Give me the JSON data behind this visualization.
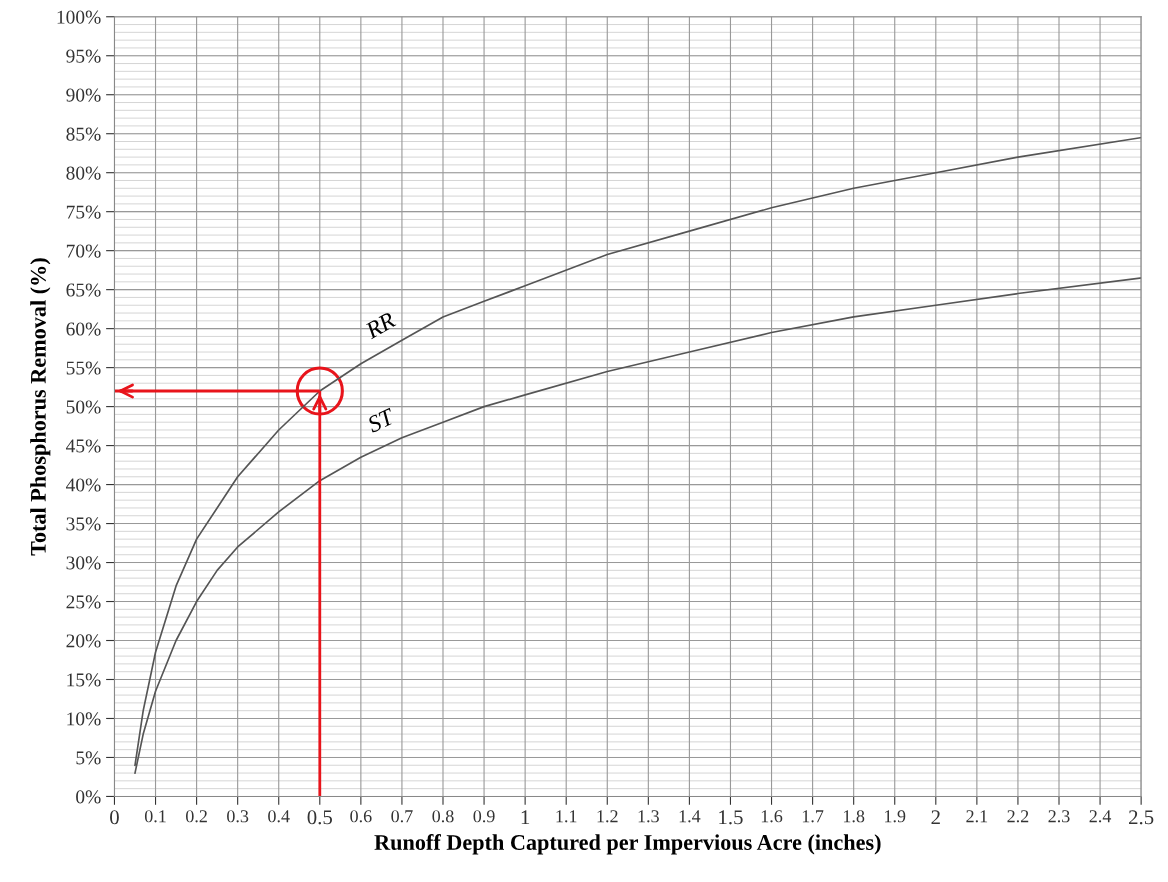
{
  "chart_data": {
    "type": "line",
    "xlabel": "Runoff Depth Captured per Impervious Acre (inches)",
    "ylabel": "Total Phosphorus Removal (%)",
    "x": [
      0.05,
      0.07,
      0.1,
      0.15,
      0.2,
      0.25,
      0.3,
      0.4,
      0.5,
      0.6,
      0.7,
      0.8,
      0.9,
      1,
      1.2,
      1.4,
      1.6,
      1.8,
      2,
      2.2,
      2.5
    ],
    "series": [
      {
        "name": "RR",
        "color": "#555555",
        "values": [
          4,
          11,
          18.5,
          27,
          33,
          37,
          41,
          47,
          52,
          55.5,
          58.5,
          61.5,
          63.5,
          65.5,
          69.5,
          72.5,
          75.5,
          78,
          80,
          82,
          84.5
        ]
      },
      {
        "name": "ST",
        "color": "#555555",
        "values": [
          3,
          8,
          13.5,
          20,
          25,
          29,
          32,
          36.5,
          40.5,
          43.5,
          46,
          48,
          50,
          51.5,
          54.5,
          57,
          59.5,
          61.5,
          63,
          64.5,
          66.5
        ]
      }
    ],
    "xlim": [
      0,
      2.5
    ],
    "xticks": [
      0,
      0.1,
      0.2,
      0.3,
      0.4,
      0.5,
      0.6,
      0.7,
      0.8,
      0.9,
      1,
      1.1,
      1.2,
      1.3,
      1.4,
      1.5,
      1.6,
      1.7,
      1.8,
      1.9,
      2,
      2.1,
      2.2,
      2.3,
      2.4,
      2.5
    ],
    "ylim": [
      0,
      100
    ],
    "yticks": [
      {
        "value": 0,
        "label": "0%"
      },
      {
        "value": 5,
        "label": "5%"
      },
      {
        "value": 10,
        "label": "10%"
      },
      {
        "value": 15,
        "label": "15%"
      },
      {
        "value": 20,
        "label": "20%"
      },
      {
        "value": 25,
        "label": "25%"
      },
      {
        "value": 30,
        "label": "30%"
      },
      {
        "value": 35,
        "label": "35%"
      },
      {
        "value": 40,
        "label": "40%"
      },
      {
        "value": 45,
        "label": "45%"
      },
      {
        "value": 50,
        "label": "50%"
      },
      {
        "value": 55,
        "label": "55%"
      },
      {
        "value": 60,
        "label": "60%"
      },
      {
        "value": 65,
        "label": "65%"
      },
      {
        "value": 70,
        "label": "70%"
      },
      {
        "value": 75,
        "label": "75%"
      },
      {
        "value": 80,
        "label": "80%"
      },
      {
        "value": 85,
        "label": "85%"
      },
      {
        "value": 90,
        "label": "90%"
      },
      {
        "value": 95,
        "label": "95%"
      },
      {
        "value": 100,
        "label": "100%"
      }
    ],
    "ref_lines": [
      {
        "axis": "x",
        "value": 0.5,
        "color": "#e8141b"
      },
      {
        "axis": "y",
        "value": 52,
        "color": "#e8141b"
      }
    ],
    "grid": true,
    "legend": false,
    "marker": "none",
    "line_style": "solid"
  }
}
